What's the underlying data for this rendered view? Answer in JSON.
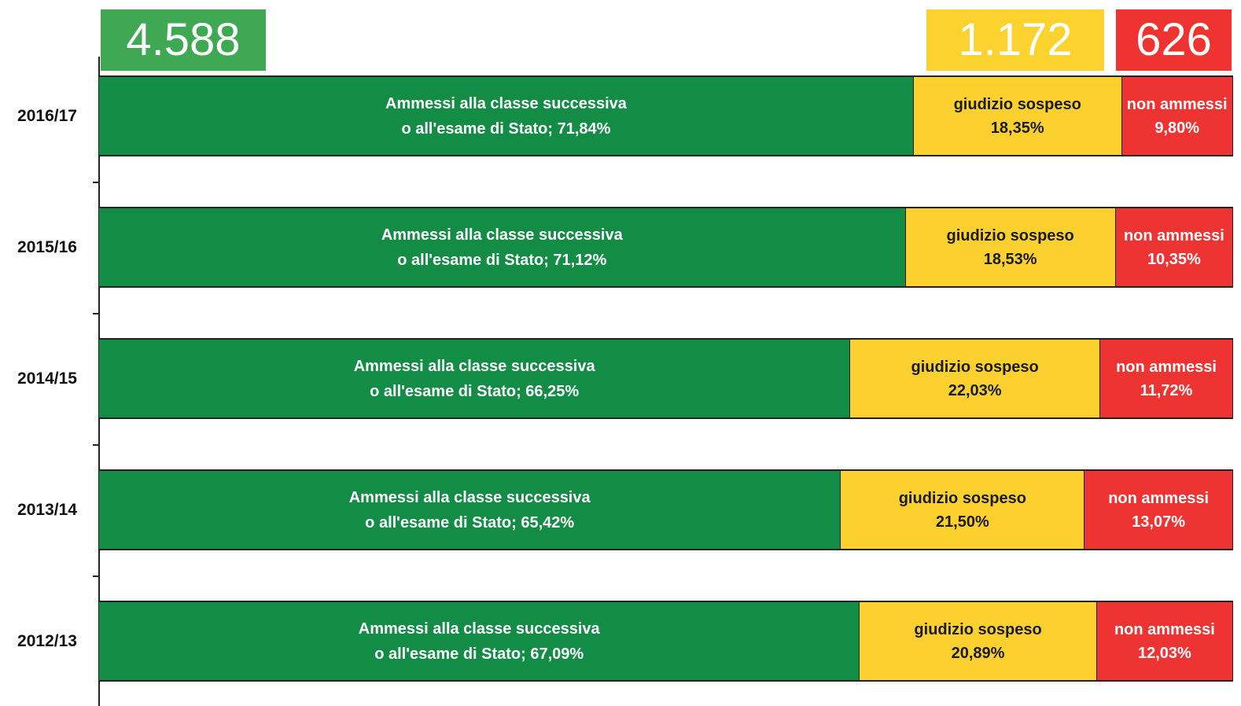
{
  "chart_data": {
    "type": "stacked-bar-horizontal",
    "annotations": [
      "4.588",
      "1.172",
      "626"
    ],
    "annotation_colors": [
      "#3ea853",
      "#fcd22e",
      "#ee3331"
    ],
    "categories": [
      "2016/17",
      "2015/16",
      "2014/15",
      "2013/14",
      "2012/13"
    ],
    "xlim": [
      0,
      100
    ],
    "series": [
      {
        "name": "Ammessi alla classe successiva o all'esame di Stato",
        "color": "#138d46",
        "label_color": "#ffffff",
        "values": [
          71.84,
          71.12,
          66.25,
          65.42,
          67.09
        ],
        "value_labels": [
          "; 71,84%",
          "; 71,12%",
          "; 66,25%",
          "; 65,42%",
          "; 67,09%"
        ]
      },
      {
        "name": "giudizio sospeso",
        "color": "#fcd12f",
        "label_color": "#1a1a1a",
        "values": [
          18.35,
          18.53,
          22.03,
          21.5,
          20.89
        ],
        "value_labels": [
          "18,35%",
          "18,53%",
          "22,03%",
          "21,50%",
          "20,89%"
        ]
      },
      {
        "name": "non ammessi",
        "color": "#ee3333",
        "label_color": "#ffffff",
        "values": [
          9.8,
          10.35,
          11.72,
          13.07,
          12.03
        ],
        "value_labels": [
          "9,80%",
          "10,35%",
          "11,72%",
          "13,07%",
          "12,03%"
        ]
      }
    ]
  }
}
